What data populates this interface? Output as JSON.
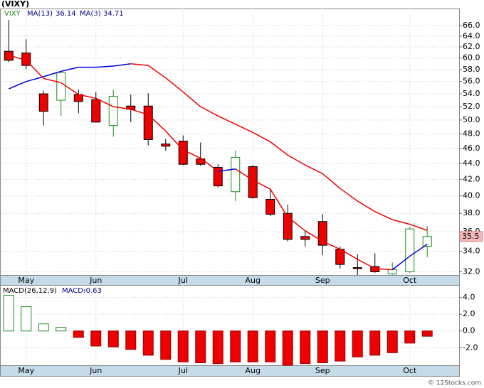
{
  "chart_data": [
    {
      "type": "candlestick",
      "title": "(VIXY)",
      "ticker": "VIXY",
      "categories": [
        null,
        "May",
        null,
        null,
        null,
        "Jun",
        null,
        null,
        null,
        null,
        "Jul",
        null,
        null,
        null,
        "Aug",
        null,
        null,
        null,
        "Sep",
        null,
        null,
        null,
        null,
        "Oct",
        null
      ],
      "open": [
        61.2,
        60.9,
        54.0,
        53.0,
        53.9,
        53.1,
        49.2,
        52.1,
        52.1,
        46.6,
        47.0,
        44.6,
        43.5,
        40.5,
        43.6,
        39.6,
        38.0,
        35.5,
        37.1,
        34.2,
        32.4,
        32.5,
        31.8,
        32.0,
        34.5
      ],
      "high": [
        67.1,
        63.4,
        54.5,
        57.7,
        54.7,
        54.3,
        54.7,
        53.9,
        54.1,
        47.3,
        47.8,
        46.8,
        43.9,
        45.7,
        43.8,
        40.8,
        39.0,
        36.1,
        37.9,
        34.5,
        33.7,
        33.8,
        32.9,
        36.5,
        36.6
      ],
      "low": [
        59.3,
        58.1,
        49.2,
        50.6,
        51.0,
        49.6,
        47.6,
        49.7,
        46.4,
        45.7,
        43.8,
        43.7,
        41.0,
        39.4,
        39.7,
        37.7,
        35.0,
        34.5,
        33.6,
        32.3,
        31.7,
        31.9,
        31.7,
        31.9,
        33.4
      ],
      "close": [
        59.6,
        58.7,
        51.3,
        57.5,
        52.8,
        49.7,
        53.6,
        51.6,
        47.2,
        46.3,
        43.9,
        43.9,
        41.2,
        44.8,
        39.8,
        37.9,
        35.2,
        35.2,
        34.6,
        32.7,
        32.3,
        32.0,
        32.2,
        36.3,
        35.5
      ],
      "up_color": "#228b22",
      "down_color": "#ee0000",
      "series": [
        {
          "name": "MA(13)",
          "rising_color": "#0000dd",
          "falling_color": "#ee0000",
          "values": [
            54.8,
            56.0,
            56.8,
            57.7,
            58.4,
            58.4,
            58.6,
            59.0,
            58.7,
            56.6,
            54.3,
            52.0,
            50.6,
            49.4,
            48.2,
            46.9,
            45.1,
            43.8,
            42.7,
            40.9,
            39.4,
            38.2,
            37.3,
            36.8,
            36.14
          ]
        },
        {
          "name": "MA(3)",
          "rising_color": "#0000dd",
          "falling_color": "#ee0000",
          "values": [
            60.5,
            59.6,
            56.5,
            55.8,
            53.9,
            53.3,
            52.0,
            51.6,
            50.8,
            48.4,
            45.8,
            44.7,
            43.0,
            43.3,
            41.9,
            40.8,
            37.6,
            36.1,
            35.0,
            34.2,
            33.2,
            32.3,
            32.2,
            33.5,
            34.71
          ]
        }
      ],
      "ylim": [
        31.7,
        69.4
      ],
      "log_scale": true,
      "grid": true,
      "yticks": [
        {
          "value": 32,
          "label": "32.0"
        },
        {
          "value": 34,
          "label": "34.0"
        },
        {
          "value": 36,
          "label": "36.0"
        },
        {
          "value": 38,
          "label": "38.0"
        },
        {
          "value": 40,
          "label": "40.0"
        },
        {
          "value": 42,
          "label": "42.0"
        },
        {
          "value": 44,
          "label": "44.0"
        },
        {
          "value": 46,
          "label": "46.0"
        },
        {
          "value": 48,
          "label": "48.0"
        },
        {
          "value": 50,
          "label": "50.0"
        },
        {
          "value": 52,
          "label": "52.0"
        },
        {
          "value": 54,
          "label": "54.0"
        },
        {
          "value": 56,
          "label": "56.0"
        },
        {
          "value": 58,
          "label": "58.0"
        },
        {
          "value": 60,
          "label": "60.0"
        },
        {
          "value": 62,
          "label": "62.0"
        },
        {
          "value": 64,
          "label": "64.0"
        },
        {
          "value": 66,
          "label": "66.0"
        }
      ]
    },
    {
      "type": "bar",
      "title": "MACD(26,12,9)",
      "value_title": "MACD:",
      "values": [
        4.26,
        2.9,
        0.85,
        0.43,
        -0.77,
        -1.8,
        -1.9,
        -2.2,
        -2.9,
        -3.4,
        -3.7,
        -3.8,
        -3.9,
        -3.7,
        -3.7,
        -3.7,
        -4.1,
        -3.9,
        -3.8,
        -3.6,
        -3.1,
        -2.9,
        -2.6,
        -1.45,
        -0.63
      ],
      "up_color": "#228b22",
      "down_color": "#ee0000",
      "ylim": [
        -4.1,
        5.5
      ],
      "grid": true,
      "yticks": [
        {
          "value": 4,
          "label": "4.0"
        },
        {
          "value": 2,
          "label": "2.0"
        },
        {
          "value": 0,
          "label": "0.0"
        },
        {
          "value": -2,
          "label": "-2.0"
        }
      ]
    }
  ],
  "footer": "© 12Stocks.com"
}
